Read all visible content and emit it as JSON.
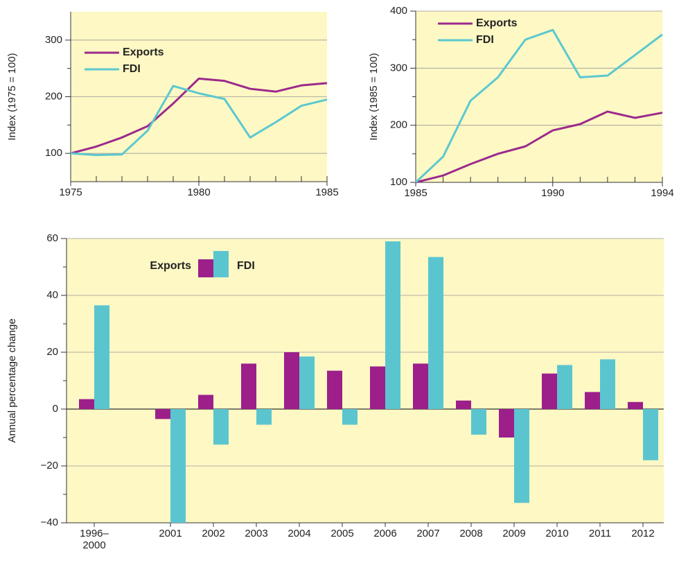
{
  "chart_data": [
    {
      "type": "line",
      "y_label": "Index (1975 = 100)",
      "x": [
        1975,
        1976,
        1977,
        1978,
        1979,
        1980,
        1981,
        1982,
        1983,
        1984,
        1985
      ],
      "series": [
        {
          "name": "Exports",
          "color": "#9b2a8c",
          "values": [
            100,
            112,
            128,
            148,
            188,
            232,
            228,
            214,
            209,
            220,
            224
          ]
        },
        {
          "name": "FDI",
          "color": "#5bc8d0",
          "values": [
            100,
            97,
            98,
            140,
            219,
            206,
            196,
            128,
            155,
            184,
            195
          ]
        }
      ],
      "xlim": [
        1975,
        1985
      ],
      "xticks": [
        1975,
        1980,
        1985
      ],
      "ylim": [
        50,
        350
      ],
      "yticks": [
        100,
        200,
        300
      ],
      "grid": true,
      "background": "#fdf8c4"
    },
    {
      "type": "line",
      "y_label": "Index (1985 = 100)",
      "x": [
        1985,
        1986,
        1987,
        1988,
        1989,
        1990,
        1991,
        1992,
        1993,
        1994
      ],
      "series": [
        {
          "name": "Exports",
          "color": "#9b2a8c",
          "values": [
            100,
            112,
            132,
            150,
            163,
            191,
            202,
            224,
            213,
            222
          ]
        },
        {
          "name": "FDI",
          "color": "#5bc8d0",
          "values": [
            100,
            145,
            243,
            284,
            350,
            367,
            284,
            287,
            323,
            359
          ]
        }
      ],
      "xlim": [
        1985,
        1994
      ],
      "xticks": [
        1985,
        1990,
        1994
      ],
      "ylim": [
        100,
        400
      ],
      "yticks": [
        100,
        200,
        300,
        400
      ],
      "grid": true,
      "background": "#fdf8c4"
    },
    {
      "type": "bar",
      "y_label": "Annual percentage change",
      "categories": [
        "1996–2000",
        "2001",
        "2002",
        "2003",
        "2004",
        "2005",
        "2006",
        "2007",
        "2008",
        "2009",
        "2010",
        "2011",
        "2012"
      ],
      "series": [
        {
          "name": "Exports",
          "color": "#9c1f8a",
          "values": [
            3.5,
            -3.5,
            5,
            16,
            20,
            13.5,
            15,
            16,
            3,
            -10,
            12.5,
            6,
            2.5
          ]
        },
        {
          "name": "FDI",
          "color": "#5bc5cf",
          "values": [
            36.5,
            -40,
            -12.5,
            -5.5,
            18.5,
            -5.5,
            59,
            53.5,
            -9,
            -33,
            15.5,
            17.5,
            -18
          ]
        }
      ],
      "ylim": [
        -40,
        60
      ],
      "yticks": [
        {
          "value": -40,
          "label": "−40"
        },
        {
          "value": -20,
          "label": "−20"
        },
        0,
        20,
        40,
        60
      ],
      "grid": true,
      "background": "#fdf8c4"
    }
  ]
}
